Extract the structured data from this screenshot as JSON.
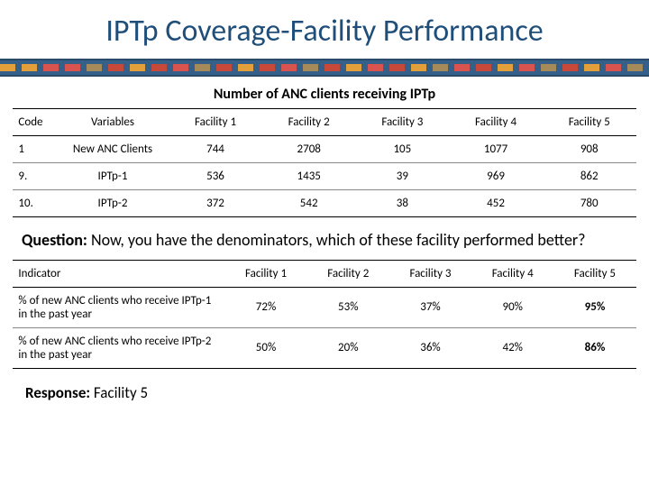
{
  "title": "IPTp Coverage-Facility Performance",
  "stripe": {
    "base": "#356089",
    "light": "#6fa7c9",
    "segments": [
      "#e3a03a",
      "#e3a03a",
      "#d9534f",
      "#d9534f",
      "#a58a5a",
      "#c7493a",
      "#e3a03a",
      "#c7493a",
      "#d9534f",
      "#a58a5a",
      "#c7493a",
      "#e3a03a",
      "#c7493a",
      "#d9534f",
      "#a58a5a",
      "#c7493a",
      "#e3a03a",
      "#d9534f",
      "#c7493a",
      "#e3a03a",
      "#a58a5a",
      "#d9534f",
      "#c7493a",
      "#e3a03a",
      "#d9534f",
      "#a58a5a",
      "#c7493a",
      "#e3a03a",
      "#d9534f",
      "#a58a5a"
    ]
  },
  "subtitle": "Number of ANC clients receiving IPTp",
  "table1": {
    "headers": [
      "Code",
      "Variables",
      "Facility 1",
      "Facility 2",
      "Facility 3",
      "Facility 4",
      "Facility 5"
    ],
    "rows": [
      [
        "1",
        "New ANC Clients",
        "744",
        "2708",
        "105",
        "1077",
        "908"
      ],
      [
        "9.",
        "IPTp-1",
        "536",
        "1435",
        "39",
        "969",
        "862"
      ],
      [
        "10.",
        "IPTp-2",
        "372",
        "542",
        "38",
        "452",
        "780"
      ]
    ]
  },
  "question_label": "Question:",
  "question_text": " Now, you have the denominators, which of these facility performed better?",
  "table2": {
    "headers": [
      "Indicator",
      "Facility 1",
      "Facility 2",
      "Facility 3",
      "Facility 4",
      "Facility 5"
    ],
    "rows": [
      {
        "cells": [
          "% of new ANC clients who receive IPTp-1 in the past year",
          "72%",
          "53%",
          "37%",
          "90%",
          "95%"
        ],
        "highlight_last": true
      },
      {
        "cells": [
          "% of new ANC clients who receive IPTp-2 in the past year",
          "50%",
          "20%",
          "36%",
          "42%",
          "86%"
        ],
        "highlight_last": true
      }
    ]
  },
  "response_label": "Response:",
  "response_text": " Facility 5"
}
